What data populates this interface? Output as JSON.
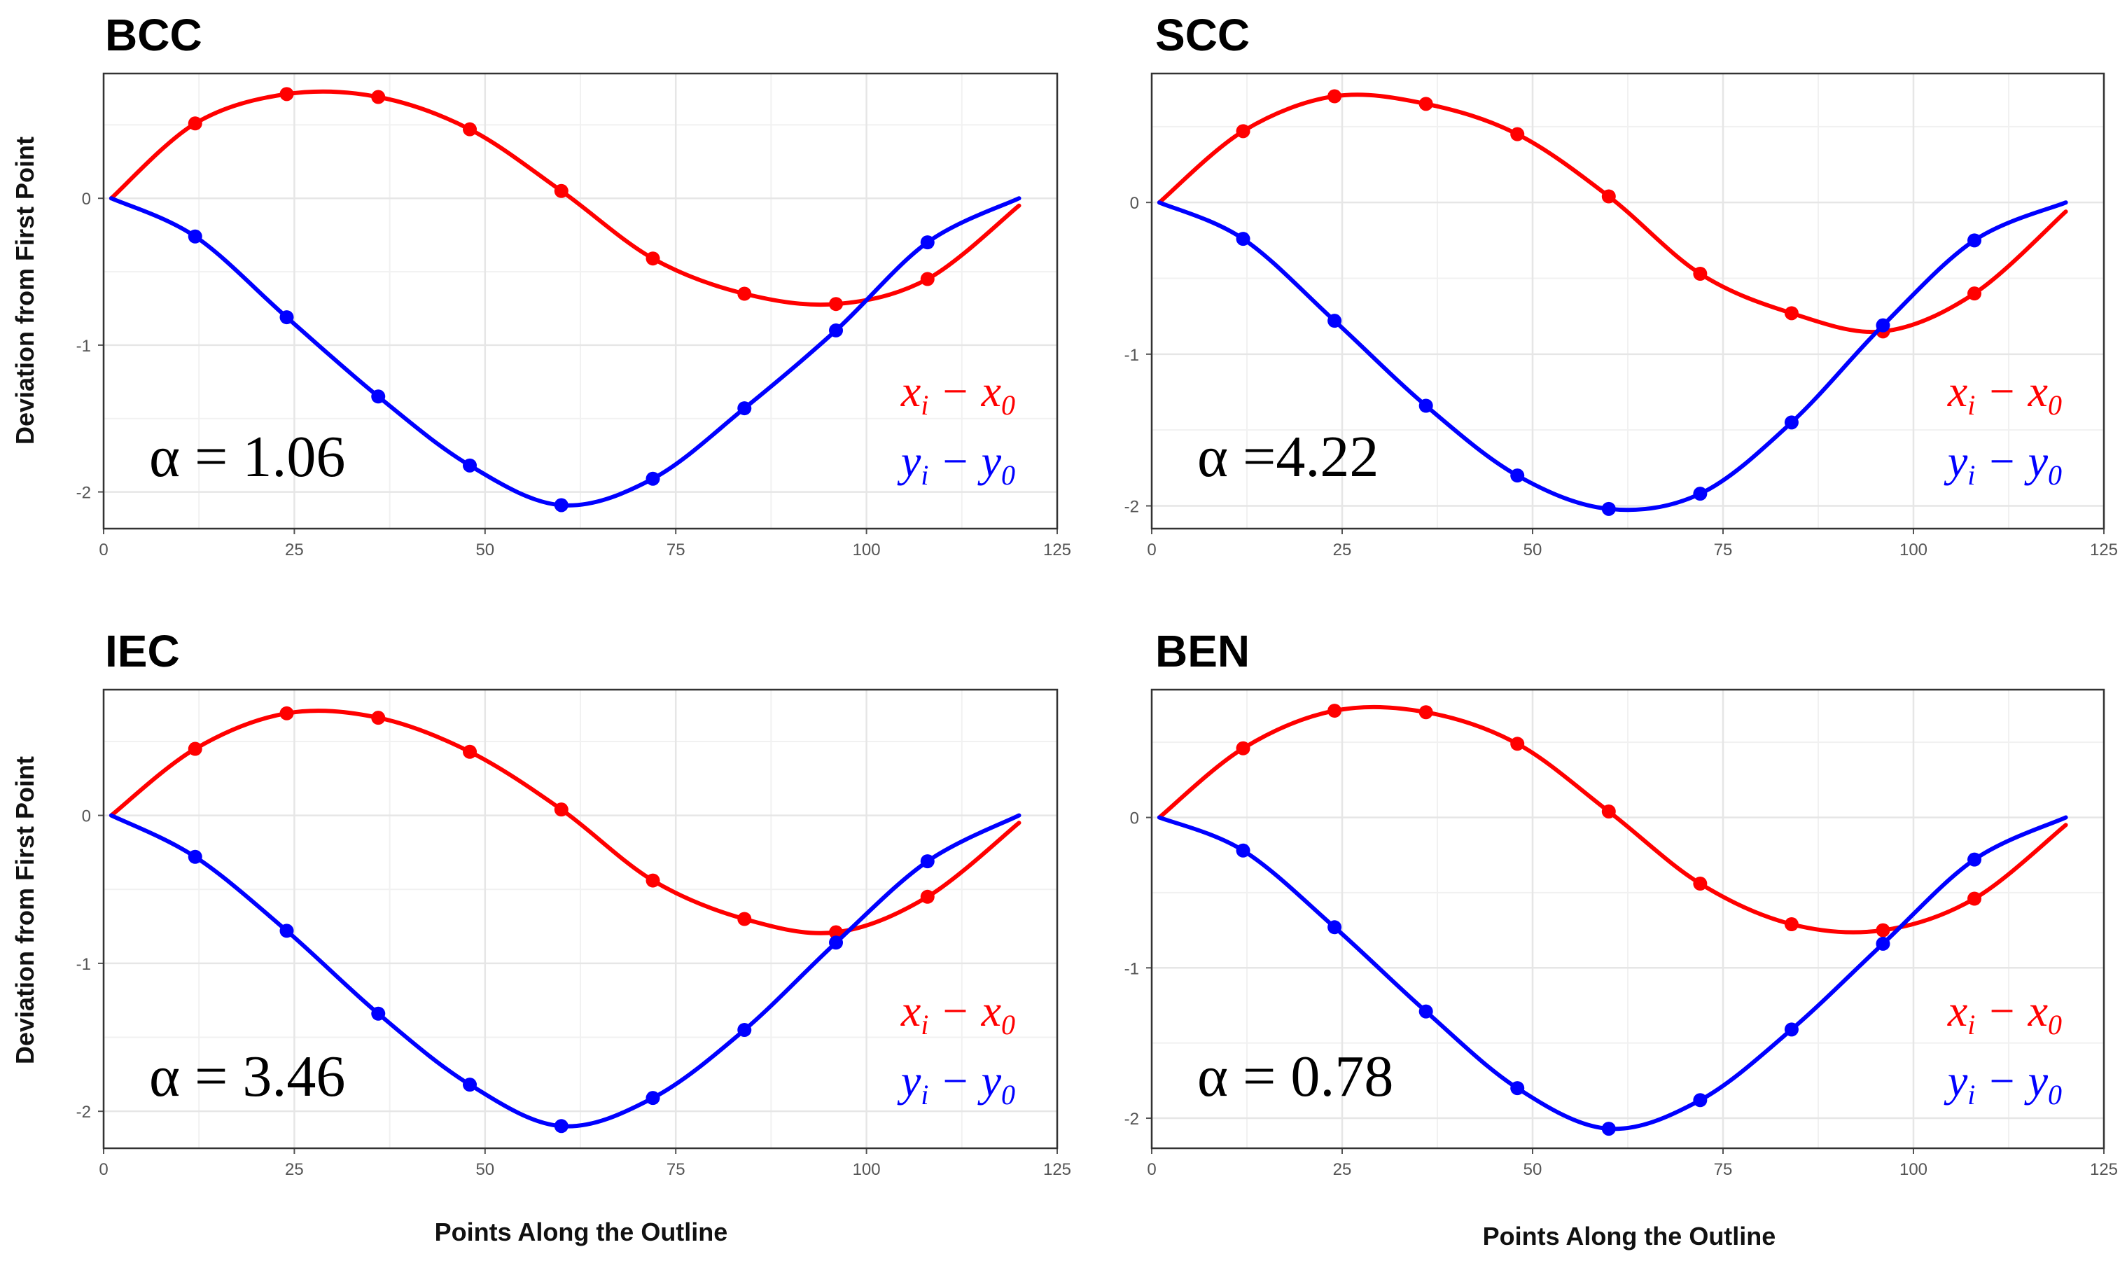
{
  "figure": {
    "y_axis_title": "Deviation from First Point",
    "x_axis_title": "Points Along the Outline"
  },
  "colors": {
    "x_series": "#ff0000",
    "y_series": "#0000ff",
    "grid": "#e6e6e6",
    "frame": "#333333"
  },
  "chart_data": [
    {
      "type": "line",
      "title": "BCC",
      "alpha_label": "α = 1.06",
      "xlim": [
        0,
        125
      ],
      "ylim": [
        -2.25,
        0.85
      ],
      "xticks": [
        0,
        25,
        50,
        75,
        100,
        125
      ],
      "yticks": [
        -2,
        -1,
        0
      ],
      "x": [
        1,
        12,
        24,
        36,
        48,
        60,
        72,
        84,
        96,
        108,
        120
      ],
      "series": [
        {
          "name": "x_i − x_0",
          "label_main": "x",
          "label_sub1": "i",
          "label_mid": " − x",
          "label_sub2": "0",
          "values": [
            0,
            0.51,
            0.71,
            0.69,
            0.47,
            0.05,
            -0.41,
            -0.65,
            -0.72,
            -0.55,
            -0.05
          ]
        },
        {
          "name": "y_i − y_0",
          "label_main": "y",
          "label_sub1": "i",
          "label_mid": " − y",
          "label_sub2": "0",
          "values": [
            0,
            -0.26,
            -0.81,
            -1.35,
            -1.82,
            -2.09,
            -1.91,
            -1.43,
            -0.9,
            -0.3,
            0
          ]
        }
      ]
    },
    {
      "type": "line",
      "title": "SCC",
      "alpha_label": "α =4.22",
      "xlim": [
        0,
        125
      ],
      "ylim": [
        -2.15,
        0.85
      ],
      "xticks": [
        0,
        25,
        50,
        75,
        100,
        125
      ],
      "yticks": [
        -2,
        -1,
        0
      ],
      "x": [
        1,
        12,
        24,
        36,
        48,
        60,
        72,
        84,
        96,
        108,
        120
      ],
      "series": [
        {
          "name": "x_i − x_0",
          "label_main": "x",
          "label_sub1": "i",
          "label_mid": " − x",
          "label_sub2": "0",
          "values": [
            0,
            0.47,
            0.7,
            0.65,
            0.45,
            0.04,
            -0.47,
            -0.73,
            -0.85,
            -0.6,
            -0.06
          ]
        },
        {
          "name": "y_i − y_0",
          "label_main": "y",
          "label_sub1": "i",
          "label_mid": " − y",
          "label_sub2": "0",
          "values": [
            0,
            -0.24,
            -0.78,
            -1.34,
            -1.8,
            -2.02,
            -1.92,
            -1.45,
            -0.81,
            -0.25,
            0
          ]
        }
      ]
    },
    {
      "type": "line",
      "title": "IEC",
      "alpha_label": "α = 3.46",
      "xlim": [
        0,
        125
      ],
      "ylim": [
        -2.25,
        0.85
      ],
      "xticks": [
        0,
        25,
        50,
        75,
        100,
        125
      ],
      "yticks": [
        -2,
        -1,
        0
      ],
      "x": [
        1,
        12,
        24,
        36,
        48,
        60,
        72,
        84,
        96,
        108,
        120
      ],
      "series": [
        {
          "name": "x_i − x_0",
          "label_main": "x",
          "label_sub1": "i",
          "label_mid": " − x",
          "label_sub2": "0",
          "values": [
            0,
            0.45,
            0.69,
            0.66,
            0.43,
            0.04,
            -0.44,
            -0.7,
            -0.79,
            -0.55,
            -0.05
          ]
        },
        {
          "name": "y_i − y_0",
          "label_main": "y",
          "label_sub1": "i",
          "label_mid": " − y",
          "label_sub2": "0",
          "values": [
            0,
            -0.28,
            -0.78,
            -1.34,
            -1.82,
            -2.1,
            -1.91,
            -1.45,
            -0.86,
            -0.31,
            0
          ]
        }
      ]
    },
    {
      "type": "line",
      "title": "BEN",
      "alpha_label": "α = 0.78",
      "xlim": [
        0,
        125
      ],
      "ylim": [
        -2.2,
        0.85
      ],
      "xticks": [
        0,
        25,
        50,
        75,
        100,
        125
      ],
      "yticks": [
        -2,
        -1,
        0
      ],
      "x": [
        1,
        12,
        24,
        36,
        48,
        60,
        72,
        84,
        96,
        108,
        120
      ],
      "series": [
        {
          "name": "x_i − x_0",
          "label_main": "x",
          "label_sub1": "i",
          "label_mid": " − x",
          "label_sub2": "0",
          "values": [
            0,
            0.46,
            0.71,
            0.7,
            0.49,
            0.04,
            -0.44,
            -0.71,
            -0.75,
            -0.54,
            -0.05
          ]
        },
        {
          "name": "y_i − y_0",
          "label_main": "y",
          "label_sub1": "i",
          "label_mid": " − y",
          "label_sub2": "0",
          "values": [
            0,
            -0.22,
            -0.73,
            -1.29,
            -1.8,
            -2.07,
            -1.88,
            -1.41,
            -0.84,
            -0.28,
            0
          ]
        }
      ]
    }
  ]
}
